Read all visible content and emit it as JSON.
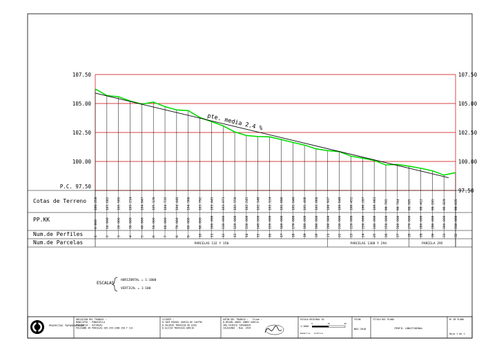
{
  "chart_data": {
    "type": "line",
    "title": "",
    "xlabel": "PP.KK",
    "ylabel": "",
    "ylim": [
      97.5,
      107.5
    ],
    "y_ticks": [
      "107.50",
      "105.00",
      "102.50",
      "100.00",
      "97.50"
    ],
    "y_left_bottom_label": "P.C. 97.50",
    "annotation": "pte. media 2.4 %",
    "pk_labels": [
      "0.000",
      "10.000",
      "20.000",
      "30.000",
      "40.000",
      "50.000",
      "60.000",
      "70.000",
      "80.000",
      "90.000",
      "100.000",
      "110.000",
      "120.000",
      "130.000",
      "140.000",
      "150.000",
      "160.000",
      "170.000",
      "180.000",
      "190.000",
      "200.000",
      "210.000",
      "220.000",
      "230.000",
      "240.000",
      "250.000",
      "260.000",
      "270.000",
      "280.000",
      "290.000",
      "300.000",
      "310.000"
    ],
    "terrain_labels": [
      "106.258",
      "105.682",
      "105.585",
      "105.214",
      "104.947",
      "105.126",
      "104.735",
      "104.446",
      "104.386",
      "103.792",
      "103.443",
      "103.073",
      "102.550",
      "102.245",
      "102.148",
      "102.124",
      "101.890",
      "101.640",
      "101.408",
      "101.088",
      "100.937",
      "100.848",
      "100.452",
      "100.287",
      "100.083",
      "99.705",
      "99.744",
      "99.595",
      "99.412",
      "99.195",
      "98.829",
      "99.035"
    ],
    "profile_numbers": [
      "1",
      "2",
      "3",
      "4",
      "5",
      "6",
      "7",
      "8",
      "9",
      "10",
      "11",
      "12",
      "13",
      "14",
      "15",
      "16",
      "17",
      "18",
      "19",
      "20",
      "21",
      "22",
      "23",
      "24",
      "25",
      "26",
      "27",
      "28",
      "29",
      "30",
      "31",
      "32"
    ],
    "series": [
      {
        "name": "",
        "color": "#00dd00",
        "values": [
          106.258,
          105.682,
          105.585,
          105.214,
          104.947,
          105.126,
          104.735,
          104.446,
          104.386,
          103.792,
          103.443,
          103.073,
          102.55,
          102.245,
          102.148,
          102.124,
          101.89,
          101.64,
          101.408,
          101.088,
          100.937,
          100.848,
          100.452,
          100.287,
          100.083,
          99.705,
          99.744,
          99.595,
          99.412,
          99.195,
          98.829,
          99.035
        ]
      },
      {
        "name": "",
        "color": "#000000",
        "start": 105.9,
        "end": 98.6
      }
    ],
    "grid": true,
    "grid_color": "#cc0000"
  },
  "rows": {
    "cotas": "Cotas de Terreno",
    "ppkk": "PP.KK",
    "perfiles": "Num.de Perfiles",
    "parcelas": "Num.de Parcelas"
  },
  "parcelas": [
    {
      "label": "PARCELAS 132 Y 150",
      "from": 0,
      "to": 20
    },
    {
      "label": "PARCELAS 1368 Y 294",
      "from": 20,
      "to": 27
    },
    {
      "label": "PARCELA 295",
      "from": 27,
      "to": 31
    }
  ],
  "escalas": {
    "label": "ESCALAS",
    "horizontal": "HORIZONTAL = 1:1000",
    "vertical": "VERTICAL   = 1:100"
  },
  "titleblock": {
    "company": "PROYECTOS TOPOGRAFICOS",
    "location": [
      "UBICACION DEL TRABAJO :",
      "MUNICIPIO : PONUCIELLA",
      "PROVINCIA : ASTURIAS",
      "POLIGONO 46 PARCELAS 285-294-1368-150 Y 132"
    ],
    "client": [
      "CLIENTE :",
      "D.JOSE MIGUEL GARCIA DE CASTRO",
      "D.VALERIO TRAVIESA DE DIOS",
      "D.ALICIA TRAVIESA GARCIA"
    ],
    "author": [
      "AUTOR DEL TRABAJO :",
      "D.MIGUEL ANGEL GOMEZ GARCIA",
      "ING.TECNICO TOPOGRAFO",
      "COLEGIADO : Num. 2494"
    ],
    "firma": "Firma :",
    "escala": [
      "ESCALA ORIGINAL A3",
      "1:1000",
      "Numérica",
      "Gráfica"
    ],
    "scale_marks": [
      "0",
      "10",
      "20"
    ],
    "fecha": [
      "FECHA",
      "NOV.2010"
    ],
    "titulo": [
      "TITULO DEL PLANO",
      "PERFIL LONGITUDINAL"
    ],
    "plano": [
      "Nº DE PLANO",
      "Hoja 1 de 1"
    ]
  }
}
